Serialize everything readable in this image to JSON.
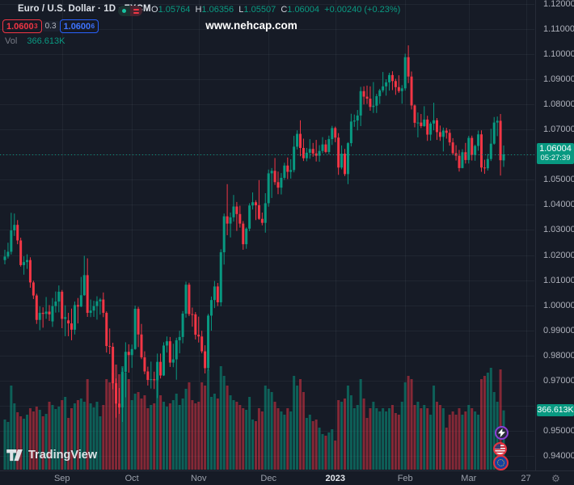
{
  "colors": {
    "background": "#161b26",
    "up": "#089981",
    "down": "#f23645",
    "volume_up": "rgba(8,153,129,0.55)",
    "volume_down": "rgba(242,54,69,0.50)",
    "grid": "rgba(170,180,200,0.07)",
    "axis_text": "#aeb1bb",
    "badge_green": "#089981",
    "buy_blue": "#2962ff",
    "sell_red": "#f23645",
    "current_price_line": "#089981"
  },
  "header": {
    "symbol_title": "Euro / U.S. Dollar · 1D · FXCM",
    "ohlc": {
      "o_label": "O",
      "o": "1.05764",
      "h_label": "H",
      "h": "1.06356",
      "l_label": "L",
      "l": "1.05507",
      "c_label": "C",
      "c": "1.06004",
      "change": "+0.00240 (+0.23%)"
    },
    "sell_price": "1.0600",
    "sell_sup": "3",
    "spread": "0.3",
    "buy_price": "1.0600",
    "buy_sup": "6",
    "vol_label": "Vol",
    "vol_value": "366.613K"
  },
  "watermark": "www.nehcap.com",
  "brand": {
    "logo_text": "TradingView"
  },
  "price_axis": {
    "ticks": [
      {
        "v": 1.12,
        "label": "1.12000"
      },
      {
        "v": 1.11,
        "label": "1.11000"
      },
      {
        "v": 1.1,
        "label": "1.10000"
      },
      {
        "v": 1.09,
        "label": "1.09000"
      },
      {
        "v": 1.08,
        "label": "1.08000"
      },
      {
        "v": 1.07,
        "label": "1.07000"
      },
      {
        "v": 1.05,
        "label": "1.05000"
      },
      {
        "v": 1.04,
        "label": "1.04000"
      },
      {
        "v": 1.03,
        "label": "1.03000"
      },
      {
        "v": 1.02,
        "label": "1.02000"
      },
      {
        "v": 1.01,
        "label": "1.01000"
      },
      {
        "v": 1.0,
        "label": "1.00000"
      },
      {
        "v": 0.99,
        "label": "0.99000"
      },
      {
        "v": 0.98,
        "label": "0.98000"
      },
      {
        "v": 0.97,
        "label": "0.97000"
      },
      {
        "v": 0.95,
        "label": "0.95000"
      },
      {
        "v": 0.94,
        "label": "0.94000"
      }
    ],
    "price_badge": {
      "label": "1.06004",
      "countdown": "05:27:39",
      "value": 1.06004
    },
    "volume_badge": {
      "label": "366.613K",
      "value_k": 366.613
    }
  },
  "time_axis": {
    "gear_glyph": "⚙"
  },
  "chart_data": {
    "type": "candlestick",
    "pair": "EUR/USD",
    "interval": "1D",
    "exchange": "FXCM",
    "visible_price_range": [
      0.94,
      1.12
    ],
    "grid_step": 0.01,
    "current_price": 1.06004,
    "current_volume_k": 366.613,
    "volume_unit": "K",
    "volume_axis_max_k": 650,
    "months": [
      {
        "label": "Sep",
        "index": 18
      },
      {
        "label": "Oct",
        "index": 40
      },
      {
        "label": "Nov",
        "index": 61
      },
      {
        "label": "Dec",
        "index": 83
      },
      {
        "label": "2023",
        "index": 104,
        "year": true
      },
      {
        "label": "Feb",
        "index": 126
      },
      {
        "label": "Mar",
        "index": 146
      },
      {
        "label": "27",
        "index": 164
      }
    ],
    "candles": [
      [
        1.018,
        1.0221,
        1.0163,
        1.0194,
        310
      ],
      [
        1.0194,
        1.0249,
        1.0186,
        1.0213,
        295
      ],
      [
        1.0213,
        1.0368,
        1.0202,
        1.0298,
        520
      ],
      [
        1.0298,
        1.0365,
        1.0276,
        1.032,
        410
      ],
      [
        1.032,
        1.0339,
        1.0243,
        1.0258,
        355
      ],
      [
        1.0258,
        1.0269,
        1.0154,
        1.016,
        330
      ],
      [
        1.016,
        1.0195,
        1.0122,
        1.0172,
        315
      ],
      [
        1.0172,
        1.0203,
        1.0145,
        1.018,
        340
      ],
      [
        1.018,
        1.0191,
        1.007,
        1.0091,
        380
      ],
      [
        1.0091,
        1.0098,
        1.0025,
        1.0039,
        360
      ],
      [
        1.0039,
        1.0046,
        0.9926,
        0.9942,
        390
      ],
      [
        0.9942,
        0.9996,
        0.9901,
        0.997,
        370
      ],
      [
        0.997,
        0.9992,
        0.9911,
        0.9966,
        330
      ],
      [
        0.9966,
        1.0033,
        0.9946,
        0.9975,
        345
      ],
      [
        0.9975,
        1.0001,
        0.9938,
        0.9964,
        420
      ],
      [
        0.9936,
        1.0029,
        0.9914,
        0.9997,
        400
      ],
      [
        0.9997,
        1.0055,
        0.9971,
        1.0015,
        375
      ],
      [
        1.0015,
        1.0079,
        0.9972,
        1.0054,
        390
      ],
      [
        1.0054,
        1.0061,
        0.9909,
        0.9946,
        430
      ],
      [
        0.9946,
        1.0,
        0.9877,
        0.9953,
        450
      ],
      [
        0.994,
        0.997,
        0.9877,
        0.9928,
        320
      ],
      [
        0.9928,
        0.9987,
        0.9861,
        0.9903,
        380
      ],
      [
        0.9903,
        1.0015,
        0.9884,
        1.0001,
        410
      ],
      [
        1.0001,
        1.0029,
        0.9928,
        0.9995,
        430
      ],
      [
        0.9995,
        1.0113,
        0.9993,
        1.004,
        440
      ],
      [
        1.004,
        1.0197,
        1.0038,
        1.012,
        420
      ],
      [
        1.012,
        1.0187,
        0.9954,
        0.997,
        560
      ],
      [
        0.997,
        1.0023,
        0.9953,
        0.9979,
        410
      ],
      [
        0.9979,
        1.0018,
        0.9954,
        0.9997,
        385
      ],
      [
        0.9997,
        1.0036,
        0.9943,
        1.0016,
        420
      ],
      [
        1.0016,
        1.0029,
        0.9963,
        1.0023,
        330
      ],
      [
        1.0023,
        1.0051,
        0.9953,
        0.997,
        400
      ],
      [
        0.997,
        0.9976,
        0.9812,
        0.9838,
        560
      ],
      [
        0.9838,
        0.9908,
        0.9806,
        0.9835,
        540
      ],
      [
        0.9835,
        0.9851,
        0.9666,
        0.969,
        600
      ],
      [
        0.969,
        0.9709,
        0.9553,
        0.9609,
        650
      ],
      [
        0.9609,
        0.9671,
        0.9568,
        0.9594,
        590
      ],
      [
        0.9594,
        0.9751,
        0.9536,
        0.9735,
        640
      ],
      [
        0.9735,
        0.9853,
        0.9634,
        0.9815,
        600
      ],
      [
        0.9815,
        0.9845,
        0.9732,
        0.9802,
        560
      ],
      [
        0.9802,
        0.9844,
        0.9751,
        0.9826,
        430
      ],
      [
        0.9826,
        0.9999,
        0.9823,
        0.9986,
        470
      ],
      [
        0.9986,
        0.9994,
        0.9834,
        0.9884,
        480
      ],
      [
        0.9884,
        0.9926,
        0.9786,
        0.9793,
        440
      ],
      [
        0.9793,
        0.9817,
        0.9726,
        0.9737,
        460
      ],
      [
        0.9737,
        0.9756,
        0.9681,
        0.9703,
        380
      ],
      [
        0.9703,
        0.9776,
        0.9669,
        0.9706,
        400
      ],
      [
        0.9706,
        0.9736,
        0.9667,
        0.9702,
        410
      ],
      [
        0.9702,
        0.9808,
        0.9631,
        0.9775,
        590
      ],
      [
        0.9775,
        0.9808,
        0.9709,
        0.9721,
        460
      ],
      [
        0.9721,
        0.9853,
        0.9719,
        0.984,
        420
      ],
      [
        0.984,
        0.9876,
        0.9812,
        0.9857,
        390
      ],
      [
        0.9857,
        0.9874,
        0.9755,
        0.9772,
        410
      ],
      [
        0.9772,
        0.9847,
        0.9754,
        0.9785,
        430
      ],
      [
        0.9785,
        0.9871,
        0.9704,
        0.9861,
        470
      ],
      [
        0.9861,
        0.9899,
        0.9809,
        0.9874,
        400
      ],
      [
        0.9874,
        0.9977,
        0.9849,
        0.9967,
        440
      ],
      [
        0.9967,
        1.0094,
        0.9951,
        1.0082,
        500
      ],
      [
        1.0082,
        1.009,
        0.9957,
        0.9965,
        540
      ],
      [
        0.9965,
        0.9991,
        0.9915,
        0.9964,
        430
      ],
      [
        0.9964,
        0.9973,
        0.9864,
        0.9883,
        410
      ],
      [
        0.9883,
        0.9955,
        0.9852,
        0.9876,
        420
      ],
      [
        0.9876,
        0.9899,
        0.9809,
        0.9817,
        540
      ],
      [
        0.9817,
        0.9841,
        0.9729,
        0.975,
        520
      ],
      [
        0.975,
        0.9966,
        0.9741,
        0.9959,
        620
      ],
      [
        0.9959,
        1.0035,
        0.9899,
        1.0021,
        450
      ],
      [
        1.0021,
        1.0097,
        0.9989,
        1.0075,
        470
      ],
      [
        1.0075,
        1.0089,
        0.9997,
        1.0012,
        440
      ],
      [
        1.0012,
        1.0223,
        0.9996,
        1.0211,
        640
      ],
      [
        1.0211,
        1.0365,
        1.0162,
        1.0354,
        580
      ],
      [
        1.0354,
        1.0482,
        1.0279,
        1.0325,
        520
      ],
      [
        1.0325,
        1.0369,
        1.027,
        1.035,
        460
      ],
      [
        1.035,
        1.0439,
        1.0333,
        1.0393,
        430
      ],
      [
        1.0393,
        1.0411,
        1.0296,
        1.0363,
        420
      ],
      [
        1.0363,
        1.0396,
        1.0309,
        1.0325,
        400
      ],
      [
        1.0325,
        1.0335,
        1.0221,
        1.0243,
        380
      ],
      [
        1.0243,
        1.031,
        1.0225,
        1.0305,
        370
      ],
      [
        1.0305,
        1.0406,
        1.0295,
        1.0397,
        450
      ],
      [
        1.0397,
        1.0449,
        1.0381,
        1.041,
        310
      ],
      [
        1.041,
        1.0418,
        1.0339,
        1.0398,
        300
      ],
      [
        1.0398,
        1.0498,
        1.034,
        1.0344,
        380
      ],
      [
        1.0344,
        1.0369,
        1.0318,
        1.0328,
        360
      ],
      [
        1.0328,
        1.0446,
        1.0289,
        1.0406,
        520
      ],
      [
        1.0406,
        1.054,
        1.0392,
        1.0525,
        500
      ],
      [
        1.0525,
        1.0546,
        1.0427,
        1.0535,
        480
      ],
      [
        1.0535,
        1.0586,
        1.0479,
        1.049,
        420
      ],
      [
        1.049,
        1.0532,
        1.0442,
        1.0468,
        380
      ],
      [
        1.0468,
        1.0526,
        1.0441,
        1.0507,
        360
      ],
      [
        1.0507,
        1.0567,
        1.0499,
        1.0556,
        340
      ],
      [
        1.0556,
        1.0588,
        1.0502,
        1.0531,
        380
      ],
      [
        1.0531,
        1.0581,
        1.0504,
        1.0538,
        360
      ],
      [
        1.0538,
        1.0674,
        1.0529,
        1.0631,
        580
      ],
      [
        1.0631,
        1.0696,
        1.062,
        1.0682,
        520
      ],
      [
        1.0682,
        1.0736,
        1.0593,
        1.0626,
        560
      ],
      [
        1.0626,
        1.0663,
        1.0574,
        1.0585,
        480
      ],
      [
        1.0585,
        1.0626,
        1.0573,
        1.0607,
        320
      ],
      [
        1.0607,
        1.0661,
        1.0583,
        1.0622,
        340
      ],
      [
        1.0622,
        1.0646,
        1.0591,
        1.0604,
        300
      ],
      [
        1.0604,
        1.0658,
        1.0572,
        1.0595,
        310
      ],
      [
        1.0595,
        1.0637,
        1.0571,
        1.0614,
        260
      ],
      [
        1.0614,
        1.0669,
        1.0605,
        1.064,
        220
      ],
      [
        1.064,
        1.0658,
        1.0605,
        1.061,
        210
      ],
      [
        1.061,
        1.0675,
        1.0601,
        1.0661,
        230
      ],
      [
        1.0661,
        1.0714,
        1.0638,
        1.0705,
        250
      ],
      [
        1.0705,
        1.0711,
        1.0649,
        1.0667,
        180
      ],
      [
        1.0667,
        1.0685,
        1.0519,
        1.0548,
        430
      ],
      [
        1.0548,
        1.0636,
        1.0541,
        1.0603,
        420
      ],
      [
        1.0603,
        1.0622,
        1.0514,
        1.0522,
        440
      ],
      [
        1.0522,
        1.0649,
        1.0482,
        1.0645,
        520
      ],
      [
        1.0645,
        1.0762,
        1.0632,
        1.0731,
        460
      ],
      [
        1.0731,
        1.0759,
        1.071,
        1.0735,
        380
      ],
      [
        1.0735,
        1.0777,
        1.0696,
        1.0755,
        400
      ],
      [
        1.0755,
        1.0869,
        1.0713,
        1.0852,
        560
      ],
      [
        1.0852,
        1.0871,
        1.0799,
        1.083,
        440
      ],
      [
        1.083,
        1.0874,
        1.0801,
        1.0822,
        320
      ],
      [
        1.0822,
        1.0871,
        1.0774,
        1.0789,
        380
      ],
      [
        1.0789,
        1.0888,
        1.0765,
        1.0794,
        420
      ],
      [
        1.0794,
        1.0841,
        1.0765,
        1.0832,
        380
      ],
      [
        1.0832,
        1.0861,
        1.0801,
        1.0855,
        360
      ],
      [
        1.0855,
        1.0928,
        1.0847,
        1.0871,
        380
      ],
      [
        1.0871,
        1.0899,
        1.0834,
        1.0887,
        360
      ],
      [
        1.0887,
        1.0925,
        1.0854,
        1.0916,
        380
      ],
      [
        1.0916,
        1.0931,
        1.0856,
        1.0892,
        400
      ],
      [
        1.0892,
        1.0901,
        1.0837,
        1.0868,
        350
      ],
      [
        1.0868,
        1.0915,
        1.0845,
        1.0852,
        340
      ],
      [
        1.0852,
        1.0876,
        1.0802,
        1.0863,
        420
      ],
      [
        1.0863,
        1.1001,
        1.0854,
        1.0987,
        540
      ],
      [
        1.0987,
        1.1034,
        1.0884,
        1.091,
        580
      ],
      [
        1.091,
        1.093,
        1.0779,
        1.0795,
        560
      ],
      [
        1.0795,
        1.0799,
        1.0708,
        1.0726,
        400
      ],
      [
        1.0726,
        1.0767,
        1.0668,
        1.0727,
        420
      ],
      [
        1.0727,
        1.0761,
        1.0705,
        1.0713,
        380
      ],
      [
        1.0713,
        1.0792,
        1.071,
        1.0739,
        400
      ],
      [
        1.0739,
        1.0754,
        1.0654,
        1.0679,
        380
      ],
      [
        1.0679,
        1.073,
        1.0655,
        1.0723,
        340
      ],
      [
        1.0723,
        1.0806,
        1.0696,
        1.0736,
        520
      ],
      [
        1.0736,
        1.0745,
        1.0658,
        1.0689,
        420
      ],
      [
        1.0689,
        1.0715,
        1.0654,
        1.067,
        400
      ],
      [
        1.067,
        1.0707,
        1.0612,
        1.0695,
        380
      ],
      [
        1.0695,
        1.0706,
        1.0663,
        1.0686,
        260
      ],
      [
        1.0686,
        1.07,
        1.0635,
        1.0648,
        340
      ],
      [
        1.0648,
        1.0665,
        1.0597,
        1.0605,
        360
      ],
      [
        1.0605,
        1.0637,
        1.0576,
        1.0595,
        340
      ],
      [
        1.0595,
        1.0618,
        1.0532,
        1.0546,
        380
      ],
      [
        1.0546,
        1.0621,
        1.0545,
        1.0609,
        340
      ],
      [
        1.0609,
        1.0646,
        1.0564,
        1.0578,
        360
      ],
      [
        1.0578,
        1.0674,
        1.0564,
        1.0666,
        400
      ],
      [
        1.0666,
        1.0675,
        1.0576,
        1.0598,
        380
      ],
      [
        1.0598,
        1.0639,
        1.0575,
        1.0634,
        360
      ],
      [
        1.0634,
        1.0695,
        1.0615,
        1.068,
        340
      ],
      [
        1.068,
        1.0696,
        1.0531,
        1.0548,
        560
      ],
      [
        1.0548,
        1.0579,
        1.0523,
        1.0545,
        580
      ],
      [
        1.0545,
        1.0602,
        1.0536,
        1.0582,
        600
      ],
      [
        1.0582,
        1.0702,
        1.0574,
        1.0643,
        630
      ],
      [
        1.0643,
        1.0749,
        1.0639,
        1.0727,
        480
      ],
      [
        1.0727,
        1.0751,
        1.0673,
        1.0734,
        420
      ],
      [
        1.0734,
        1.0761,
        1.0516,
        1.0577,
        620
      ],
      [
        1.05764,
        1.06356,
        1.05507,
        1.06004,
        366.613
      ]
    ]
  },
  "event_markers": {
    "lightning": "economic-event",
    "us_flag": "us-economic-event",
    "eu_flag": "eu-economic-event"
  }
}
